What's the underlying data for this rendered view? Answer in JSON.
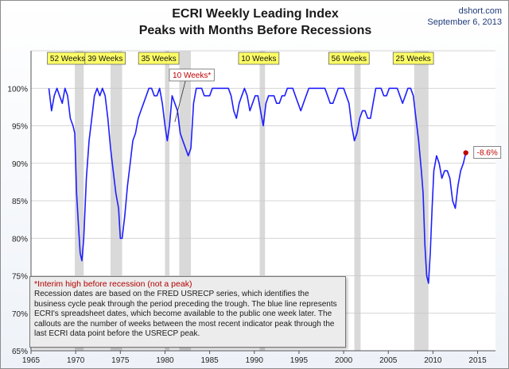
{
  "header": {
    "title_line1": "ECRI Weekly Leading Index",
    "title_line2": "Peaks with Months Before Recessions",
    "source": "dshort.com",
    "date": "September 6, 2013"
  },
  "note": {
    "headline": "*Interim high before recession (not a peak)",
    "body": "Recession dates are based on the FRED USRECP series, which identifies the business cycle peak through the period preceding the trough. The blue line represents ECRI's spreadsheet dates, which become available to the public one week later. The callouts are the number of weeks between the most recent indicator peak through the last ECRI data point before the USRECP peak."
  },
  "colors": {
    "line": "#1f1fff",
    "recession": "#d9d9d9",
    "callout": "#ffff66",
    "interim_text": "#c00000",
    "end_marker": "#c00000"
  },
  "chart_data": {
    "type": "line",
    "xlim": [
      1965,
      2017
    ],
    "ylim": [
      65,
      105
    ],
    "x_ticks": [
      1965,
      1970,
      1975,
      1980,
      1985,
      1990,
      1995,
      2000,
      2005,
      2010,
      2015
    ],
    "y_ticks": [
      65,
      70,
      75,
      80,
      85,
      90,
      95,
      100
    ],
    "y_tick_labels": [
      "65%",
      "70%",
      "75%",
      "80%",
      "85%",
      "90%",
      "95%",
      "100%"
    ],
    "recessions": [
      {
        "start": 1969.9,
        "end": 1970.9
      },
      {
        "start": 1973.9,
        "end": 1975.2
      },
      {
        "start": 1980.0,
        "end": 1980.5
      },
      {
        "start": 1981.6,
        "end": 1982.9
      },
      {
        "start": 1990.6,
        "end": 1991.2
      },
      {
        "start": 2001.2,
        "end": 2001.9
      },
      {
        "start": 2007.9,
        "end": 2009.5
      }
    ],
    "callouts": [
      {
        "label": "52 Weeks",
        "x": 1969.1,
        "interim": false
      },
      {
        "label": "39 Weeks",
        "x": 1973.3,
        "interim": false
      },
      {
        "label": "35 Weeks",
        "x": 1979.3,
        "interim": false
      },
      {
        "label": "10 Weeks*",
        "x": 1983.0,
        "interim": true,
        "target_x": 1981.1,
        "target_y": 95.5
      },
      {
        "label": "10 Weeks",
        "x": 1990.5,
        "interim": false
      },
      {
        "label": "56 Weeks",
        "x": 2000.6,
        "interim": false
      },
      {
        "label": "25 Weeks",
        "x": 2007.8,
        "interim": false
      }
    ],
    "end_label": "-8.6%",
    "end_point": {
      "x": 2013.68,
      "y": 91.4
    },
    "series": [
      {
        "x": [
          1967.0,
          1967.3,
          1967.6,
          1967.9,
          1968.2,
          1968.5,
          1968.8,
          1969.1,
          1969.4,
          1969.7,
          1969.9,
          1970.1,
          1970.3,
          1970.5,
          1970.7,
          1970.9,
          1971.2,
          1971.5,
          1971.8,
          1972.1,
          1972.4,
          1972.7,
          1973.0,
          1973.3,
          1973.6,
          1973.9,
          1974.2,
          1974.5,
          1974.8,
          1975.0,
          1975.2,
          1975.5,
          1975.8,
          1976.1,
          1976.4,
          1976.7,
          1977.0,
          1977.3,
          1977.6,
          1977.9,
          1978.2,
          1978.5,
          1978.8,
          1979.1,
          1979.4,
          1979.7,
          1980.0,
          1980.25,
          1980.5,
          1980.8,
          1981.1,
          1981.4,
          1981.7,
          1982.0,
          1982.3,
          1982.6,
          1982.9,
          1983.2,
          1983.5,
          1983.8,
          1984.1,
          1984.4,
          1984.7,
          1985.0,
          1985.3,
          1985.6,
          1985.9,
          1986.2,
          1986.5,
          1986.8,
          1987.1,
          1987.4,
          1987.7,
          1988.0,
          1988.3,
          1988.6,
          1988.9,
          1989.2,
          1989.5,
          1989.8,
          1990.1,
          1990.4,
          1990.7,
          1991.0,
          1991.3,
          1991.6,
          1991.9,
          1992.2,
          1992.5,
          1992.8,
          1993.1,
          1993.4,
          1993.7,
          1994.0,
          1994.3,
          1994.6,
          1994.9,
          1995.2,
          1995.5,
          1995.8,
          1996.1,
          1996.4,
          1996.7,
          1997.0,
          1997.3,
          1997.6,
          1997.9,
          1998.2,
          1998.5,
          1998.8,
          1999.1,
          1999.4,
          1999.7,
          2000.0,
          2000.3,
          2000.6,
          2000.9,
          2001.2,
          2001.5,
          2001.8,
          2002.1,
          2002.4,
          2002.7,
          2003.0,
          2003.3,
          2003.6,
          2003.9,
          2004.2,
          2004.5,
          2004.8,
          2005.1,
          2005.4,
          2005.7,
          2006.0,
          2006.3,
          2006.6,
          2006.9,
          2007.2,
          2007.5,
          2007.8,
          2008.1,
          2008.4,
          2008.7,
          2008.9,
          2009.1,
          2009.3,
          2009.5,
          2009.7,
          2009.9,
          2010.1,
          2010.4,
          2010.7,
          2011.0,
          2011.3,
          2011.6,
          2011.9,
          2012.2,
          2012.5,
          2012.8,
          2013.1,
          2013.4,
          2013.68
        ],
        "y": [
          100,
          97,
          99,
          100,
          99,
          98,
          100,
          99,
          96,
          95,
          94,
          86,
          82,
          78,
          77,
          80,
          88,
          93,
          96,
          99,
          100,
          99,
          100,
          99,
          96,
          92,
          89,
          86,
          84,
          80,
          80,
          83,
          87,
          90,
          93,
          94,
          96,
          97,
          98,
          99,
          100,
          100,
          99,
          99,
          100,
          98,
          95,
          93,
          95,
          99,
          98,
          97,
          94,
          93,
          92,
          91,
          92,
          98,
          100,
          100,
          100,
          99,
          99,
          99,
          100,
          100,
          100,
          100,
          100,
          100,
          100,
          99,
          97,
          96,
          98,
          99,
          100,
          99,
          97,
          98,
          99,
          99,
          97,
          95,
          98,
          99,
          99,
          99,
          98,
          98,
          99,
          99,
          100,
          100,
          100,
          99,
          98,
          97,
          98,
          99,
          100,
          100,
          100,
          100,
          100,
          100,
          100,
          99,
          98,
          98,
          99,
          100,
          100,
          100,
          99,
          98,
          95,
          93,
          94,
          96,
          97,
          97,
          96,
          96,
          98,
          100,
          100,
          100,
          99,
          99,
          100,
          100,
          100,
          100,
          99,
          98,
          99,
          100,
          100,
          99,
          96,
          93,
          89,
          86,
          79,
          75,
          74,
          78,
          84,
          89,
          91,
          90,
          88,
          89,
          89,
          88,
          85,
          84,
          87,
          89,
          90,
          91.4
        ]
      }
    ]
  }
}
